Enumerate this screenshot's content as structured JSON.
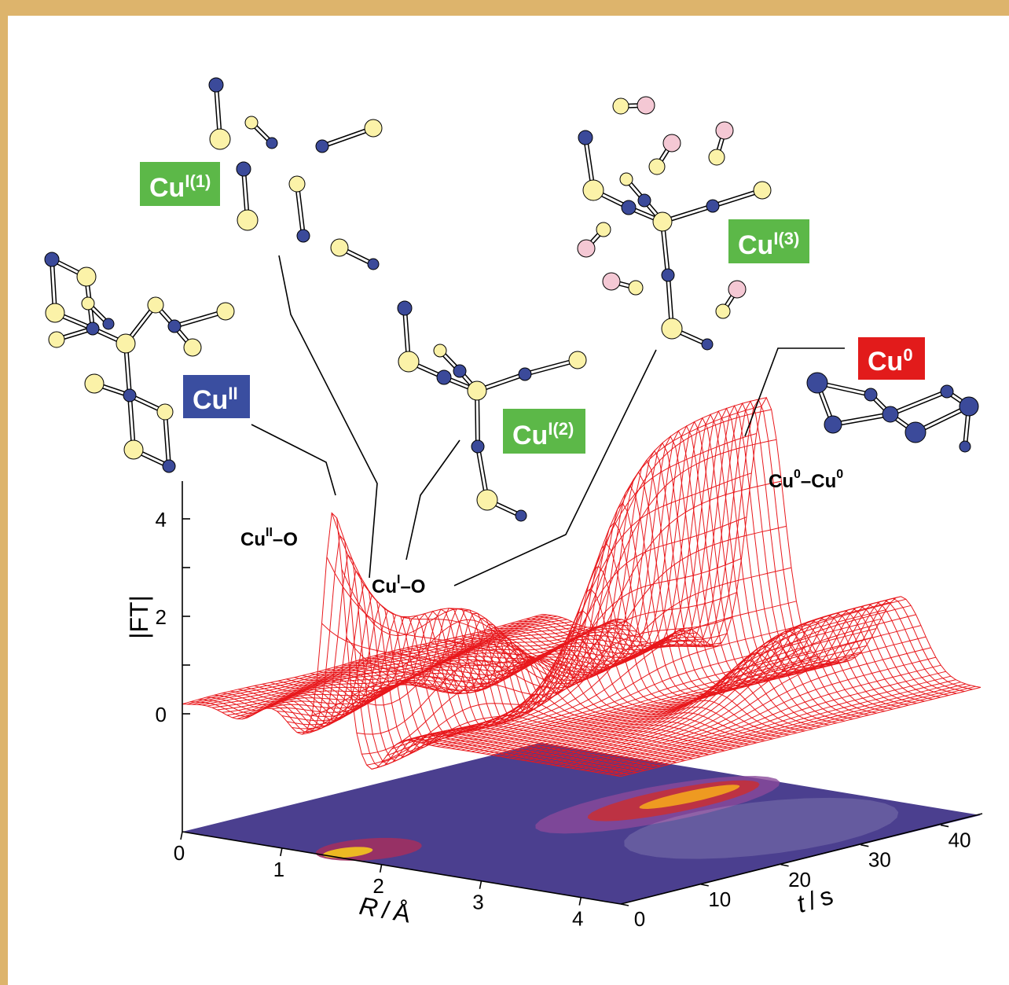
{
  "labels": {
    "cu_i1": {
      "base": "Cu",
      "sup": "I(1)"
    },
    "cu_ii": {
      "base": "Cu",
      "sup": "II"
    },
    "cu_i2": {
      "base": "Cu",
      "sup": "I(2)"
    },
    "cu_i3": {
      "base": "Cu",
      "sup": "I(3)"
    },
    "cu_0": {
      "base": "Cu",
      "sup": "0"
    }
  },
  "peaks": {
    "cu_ii_o": {
      "base": "Cu",
      "sup": "II",
      "tail": "–O"
    },
    "cu_i_o": {
      "base": "Cu",
      "sup": "I",
      "tail": "–O"
    },
    "cu0_cu0": {
      "base": "Cu",
      "sup": "0",
      "tail": "–Cu",
      "sup2": "0"
    }
  },
  "axes": {
    "ft": {
      "title": "|FT|",
      "ticks": [
        "0",
        "2",
        "4"
      ]
    },
    "r": {
      "symbol": "R",
      "sep": "/",
      "unit": "Å",
      "ticks": [
        "0",
        "1",
        "2",
        "3",
        "4"
      ]
    },
    "t": {
      "symbol": "t",
      "sep": "/",
      "unit": "s",
      "ticks": [
        "0",
        "10",
        "20",
        "30",
        "40"
      ]
    }
  }
}
